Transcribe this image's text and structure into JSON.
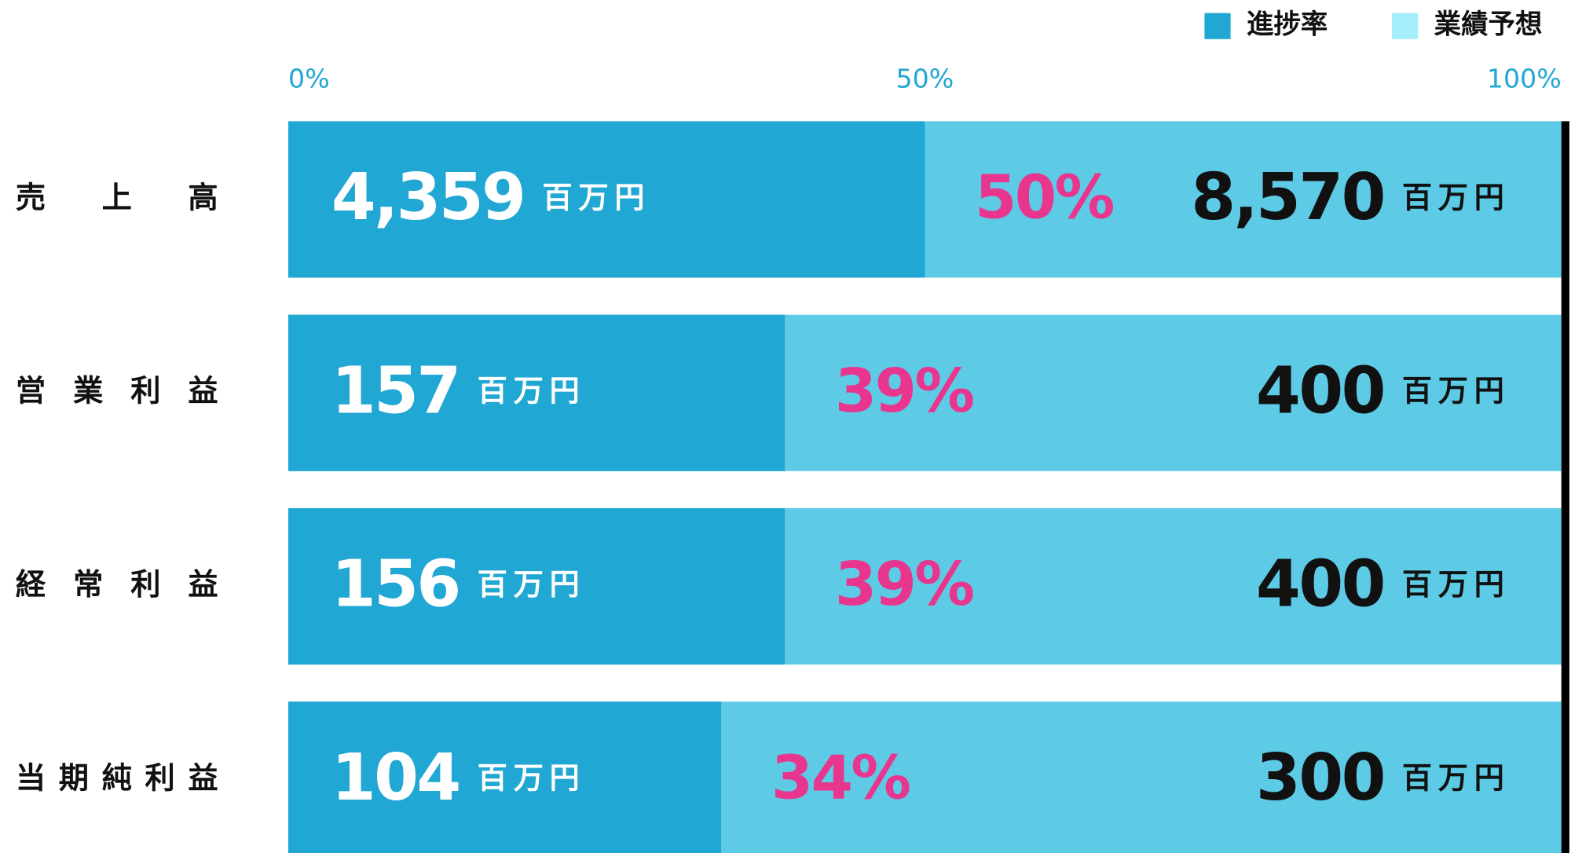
{
  "chart_data": {
    "type": "bar",
    "categories": [
      "売　上　高",
      "営業利益",
      "経常利益",
      "当期純利益"
    ],
    "series": [
      {
        "name": "進捗率",
        "color": "#21a7d3",
        "values": [
          50,
          39,
          39,
          34
        ],
        "value_labels": [
          "50%",
          "39%",
          "39%",
          "34%"
        ]
      },
      {
        "name": "業績予想",
        "color": "#a6eef9"
      }
    ],
    "actual": {
      "values": [
        4359,
        157,
        156,
        104
      ],
      "value_labels": [
        "4,359",
        "157",
        "156",
        "104"
      ]
    },
    "forecast": {
      "values": [
        8570,
        400,
        400,
        300
      ],
      "value_labels": [
        "8,570",
        "400",
        "400",
        "300"
      ]
    },
    "unit": "百万円",
    "xlim": [
      0,
      100
    ],
    "xticks": [
      {
        "value": 0,
        "label": "0%"
      },
      {
        "value": 50,
        "label": "50%"
      },
      {
        "value": 100,
        "label": "100%"
      }
    ],
    "track_color": "#5ecbe6",
    "percent_color": "#e8368f"
  }
}
